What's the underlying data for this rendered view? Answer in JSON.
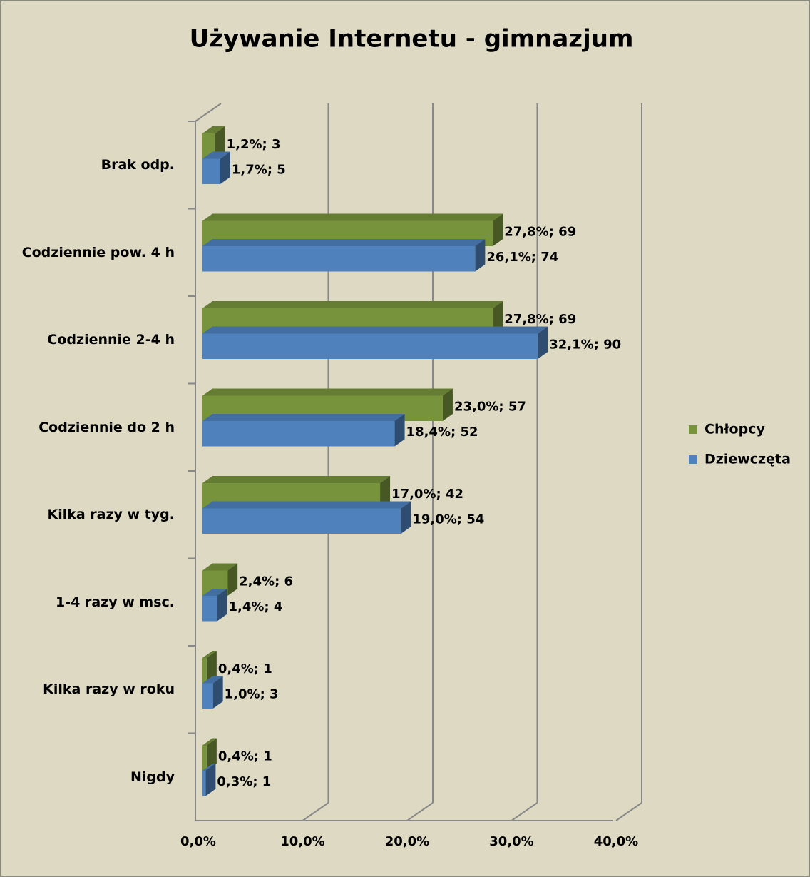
{
  "chart_data": {
    "type": "bar",
    "orientation": "horizontal",
    "title": "Używanie Internetu - gimnazjum",
    "categories": [
      "Brak odp.",
      "Codziennie pow. 4 h",
      "Codziennie 2-4 h",
      "Codziennie do 2 h",
      "Kilka razy w tyg.",
      "1-4 razy w msc.",
      "Kilka razy w roku",
      "Nigdy"
    ],
    "series": [
      {
        "name": "Chłopcy",
        "color": "#77933c",
        "values": [
          1.2,
          27.8,
          27.8,
          23.0,
          17.0,
          2.4,
          0.4,
          0.4
        ],
        "value_labels": [
          "1,2%; 3",
          "27,8%; 69",
          "27,8%; 69",
          "23,0%; 57",
          "17,0%; 42",
          "2,4%; 6",
          "0,4%; 1",
          "0,4%; 1"
        ]
      },
      {
        "name": "Dziewczęta",
        "color": "#4f81bd",
        "values": [
          1.7,
          26.1,
          32.1,
          18.4,
          19.0,
          1.4,
          1.0,
          0.3
        ],
        "value_labels": [
          "1,7%; 5",
          "26,1%; 74",
          "32,1%; 90",
          "18,4%; 52",
          "19,0%; 54",
          "1,4%; 4",
          "1,0%; 3",
          "0,3%; 1"
        ]
      }
    ],
    "xlim": [
      0,
      40
    ],
    "xticks": [
      {
        "value": 0,
        "label": "0,0%"
      },
      {
        "value": 10,
        "label": "10,0%"
      },
      {
        "value": 20,
        "label": "20,0%"
      },
      {
        "value": 30,
        "label": "30,0%"
      },
      {
        "value": 40,
        "label": "40,0%"
      }
    ],
    "grid": true,
    "legend": "right"
  }
}
